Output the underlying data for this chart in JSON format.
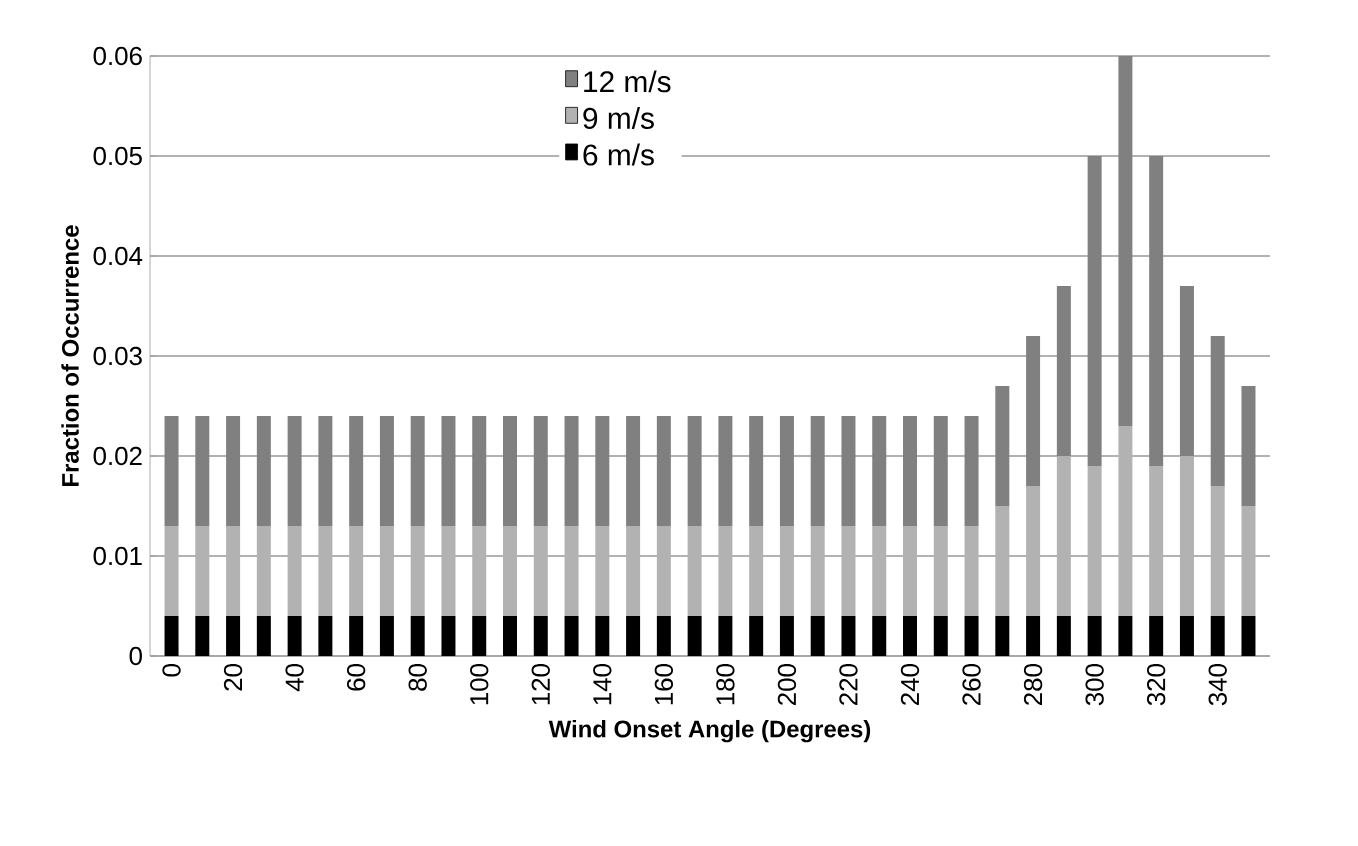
{
  "chart_data": {
    "type": "bar",
    "stacked": true,
    "xlabel": "Wind Onset Angle (Degrees)",
    "ylabel": "Fraction of Occurrence",
    "categories": [
      "0",
      null,
      "20",
      null,
      "40",
      null,
      "60",
      null,
      "80",
      null,
      "100",
      null,
      "120",
      null,
      "140",
      null,
      "160",
      null,
      "180",
      null,
      "200",
      null,
      "220",
      null,
      "240",
      null,
      "260",
      null,
      "280",
      null,
      "300",
      null,
      "320",
      null,
      "340",
      null
    ],
    "series": [
      {
        "name": "6 m/s",
        "color": "#000000",
        "values": [
          0.004,
          0.004,
          0.004,
          0.004,
          0.004,
          0.004,
          0.004,
          0.004,
          0.004,
          0.004,
          0.004,
          0.004,
          0.004,
          0.004,
          0.004,
          0.004,
          0.004,
          0.004,
          0.004,
          0.004,
          0.004,
          0.004,
          0.004,
          0.004,
          0.004,
          0.004,
          0.004,
          0.004,
          0.004,
          0.004,
          0.004,
          0.004,
          0.004,
          0.004,
          0.004,
          0.004
        ]
      },
      {
        "name": "9 m/s",
        "color": "#b2b2b2",
        "values": [
          0.009,
          0.009,
          0.009,
          0.009,
          0.009,
          0.009,
          0.009,
          0.009,
          0.009,
          0.009,
          0.009,
          0.009,
          0.009,
          0.009,
          0.009,
          0.009,
          0.009,
          0.009,
          0.009,
          0.009,
          0.009,
          0.009,
          0.009,
          0.009,
          0.009,
          0.009,
          0.009,
          0.011,
          0.013,
          0.016,
          0.015,
          0.019,
          0.015,
          0.016,
          0.013,
          0.011
        ]
      },
      {
        "name": "12 m/s",
        "color": "#808080",
        "values": [
          0.011,
          0.011,
          0.011,
          0.011,
          0.011,
          0.011,
          0.011,
          0.011,
          0.011,
          0.011,
          0.011,
          0.011,
          0.011,
          0.011,
          0.011,
          0.011,
          0.011,
          0.011,
          0.011,
          0.011,
          0.011,
          0.011,
          0.011,
          0.011,
          0.011,
          0.011,
          0.011,
          0.012,
          0.015,
          0.017,
          0.031,
          0.037,
          0.031,
          0.017,
          0.015,
          0.012
        ]
      }
    ],
    "ylim": [
      0,
      0.06
    ],
    "yticks": [
      0,
      0.01,
      0.02,
      0.03,
      0.04,
      0.05,
      0.06
    ],
    "grid": "y",
    "legend": "top"
  }
}
